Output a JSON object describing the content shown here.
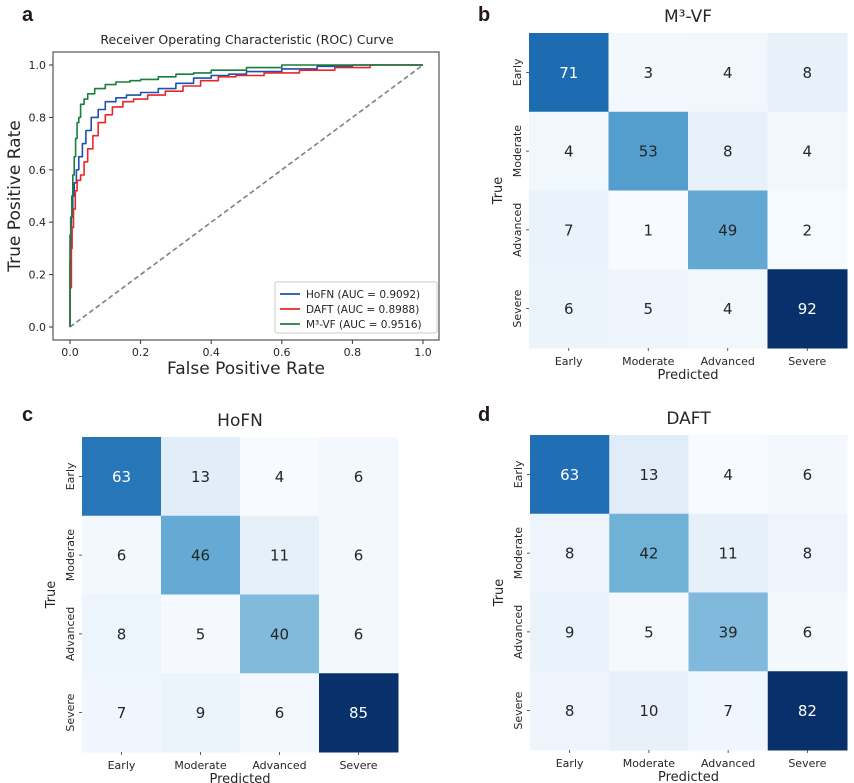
{
  "panels": {
    "a": "a",
    "b": "b",
    "c": "c",
    "d": "d"
  },
  "chart_data": [
    {
      "type": "line",
      "panel": "a",
      "title": "Receiver Operating Characteristic (ROC) Curve",
      "xlabel": "False Positive Rate",
      "ylabel": "True Positive Rate",
      "xlim": [
        0.0,
        1.0
      ],
      "ylim": [
        0.0,
        1.0
      ],
      "xticks": [
        "0.0",
        "0.2",
        "0.4",
        "0.6",
        "0.8",
        "1.0"
      ],
      "yticks": [
        "0.0",
        "0.2",
        "0.4",
        "0.6",
        "0.8",
        "1.0"
      ],
      "grid": false,
      "legend_position": "bottom-right",
      "series": [
        {
          "name": "HoFN (AUC = 0.9092)",
          "legend_label": "HoFN (AUC = 0.9092)",
          "color": "#1f4fb0",
          "points": [
            [
              0,
              0
            ],
            [
              0,
              0.1
            ],
            [
              0.002,
              0.25
            ],
            [
              0.004,
              0.35
            ],
            [
              0.008,
              0.42
            ],
            [
              0.012,
              0.5
            ],
            [
              0.018,
              0.55
            ],
            [
              0.025,
              0.6
            ],
            [
              0.035,
              0.65
            ],
            [
              0.045,
              0.7
            ],
            [
              0.06,
              0.75
            ],
            [
              0.08,
              0.8
            ],
            [
              0.1,
              0.83
            ],
            [
              0.13,
              0.86
            ],
            [
              0.16,
              0.875
            ],
            [
              0.2,
              0.885
            ],
            [
              0.25,
              0.895
            ],
            [
              0.3,
              0.91
            ],
            [
              0.35,
              0.93
            ],
            [
              0.4,
              0.95
            ],
            [
              0.45,
              0.96
            ],
            [
              0.5,
              0.965
            ],
            [
              0.6,
              0.975
            ],
            [
              0.7,
              0.985
            ],
            [
              0.8,
              0.995
            ],
            [
              0.9,
              1.0
            ],
            [
              1.0,
              1.0
            ]
          ]
        },
        {
          "name": "DAFT (AUC = 0.8988)",
          "legend_label": "DAFT (AUC = 0.8988)",
          "color": "#e8262a",
          "points": [
            [
              0,
              0
            ],
            [
              0.004,
              0.15
            ],
            [
              0.006,
              0.3
            ],
            [
              0.01,
              0.38
            ],
            [
              0.015,
              0.45
            ],
            [
              0.02,
              0.52
            ],
            [
              0.03,
              0.56
            ],
            [
              0.04,
              0.58
            ],
            [
              0.05,
              0.63
            ],
            [
              0.065,
              0.68
            ],
            [
              0.08,
              0.73
            ],
            [
              0.1,
              0.78
            ],
            [
              0.12,
              0.81
            ],
            [
              0.15,
              0.84
            ],
            [
              0.18,
              0.86
            ],
            [
              0.22,
              0.87
            ],
            [
              0.27,
              0.885
            ],
            [
              0.32,
              0.9
            ],
            [
              0.37,
              0.92
            ],
            [
              0.42,
              0.94
            ],
            [
              0.47,
              0.955
            ],
            [
              0.55,
              0.96
            ],
            [
              0.65,
              0.97
            ],
            [
              0.75,
              0.98
            ],
            [
              0.85,
              0.99
            ],
            [
              0.95,
              1.0
            ],
            [
              1.0,
              1.0
            ]
          ]
        },
        {
          "name": "M³-VF (AUC = 0.9516)",
          "legend_label": "M³-VF (AUC = 0.9516)",
          "color": "#1a7f3c",
          "points": [
            [
              0,
              0
            ],
            [
              0,
              0.2
            ],
            [
              0.002,
              0.35
            ],
            [
              0.005,
              0.42
            ],
            [
              0.008,
              0.5
            ],
            [
              0.012,
              0.58
            ],
            [
              0.016,
              0.65
            ],
            [
              0.02,
              0.72
            ],
            [
              0.025,
              0.78
            ],
            [
              0.03,
              0.8
            ],
            [
              0.04,
              0.85
            ],
            [
              0.05,
              0.87
            ],
            [
              0.07,
              0.89
            ],
            [
              0.1,
              0.91
            ],
            [
              0.13,
              0.925
            ],
            [
              0.17,
              0.935
            ],
            [
              0.2,
              0.94
            ],
            [
              0.25,
              0.945
            ],
            [
              0.3,
              0.955
            ],
            [
              0.35,
              0.965
            ],
            [
              0.4,
              0.97
            ],
            [
              0.5,
              0.98
            ],
            [
              0.6,
              0.99
            ],
            [
              0.65,
              1.0
            ],
            [
              1.0,
              1.0
            ]
          ]
        },
        {
          "name": "chance",
          "color": "#808080",
          "dashed": true,
          "points": [
            [
              0,
              0
            ],
            [
              1,
              1
            ]
          ]
        }
      ]
    },
    {
      "type": "heatmap",
      "panel": "b",
      "title": "M³-VF",
      "xlabel": "Predicted",
      "ylabel": "True",
      "categories": [
        "Early",
        "Moderate",
        "Advanced",
        "Severe"
      ],
      "matrix": [
        [
          71,
          3,
          4,
          8
        ],
        [
          4,
          53,
          8,
          4
        ],
        [
          7,
          1,
          49,
          2
        ],
        [
          6,
          5,
          4,
          92
        ]
      ]
    },
    {
      "type": "heatmap",
      "panel": "c",
      "title": "HoFN",
      "xlabel": "Predicted",
      "ylabel": "True",
      "categories": [
        "Early",
        "Moderate",
        "Advanced",
        "Severe"
      ],
      "matrix": [
        [
          63,
          13,
          4,
          6
        ],
        [
          6,
          46,
          11,
          6
        ],
        [
          8,
          5,
          40,
          6
        ],
        [
          7,
          9,
          6,
          85
        ]
      ]
    },
    {
      "type": "heatmap",
      "panel": "d",
      "title": "DAFT",
      "xlabel": "Predicted",
      "ylabel": "True",
      "categories": [
        "Early",
        "Moderate",
        "Advanced",
        "Severe"
      ],
      "matrix": [
        [
          63,
          13,
          4,
          6
        ],
        [
          8,
          42,
          11,
          8
        ],
        [
          9,
          5,
          39,
          6
        ],
        [
          8,
          10,
          7,
          82
        ]
      ]
    }
  ]
}
